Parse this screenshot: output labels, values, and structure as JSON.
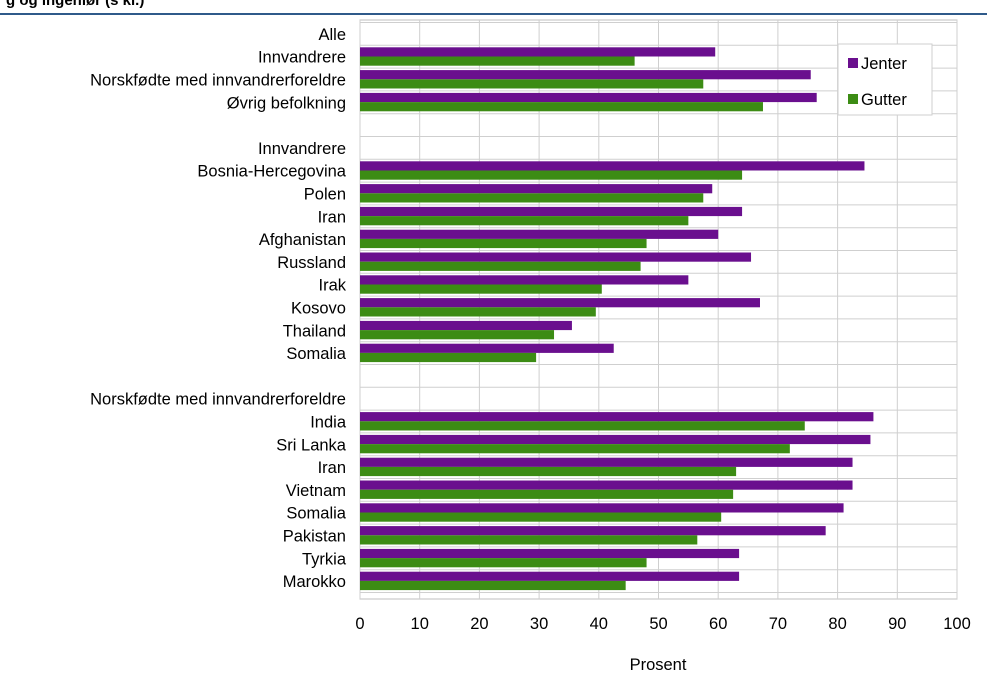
{
  "header": {
    "title_fragment": "g og ingeniør (s kl.)"
  },
  "chart_data": {
    "type": "bar",
    "orientation": "horizontal",
    "xlabel": "Prosent",
    "xlim": [
      0,
      100
    ],
    "xticks": [
      0,
      10,
      20,
      30,
      40,
      50,
      60,
      70,
      80,
      90,
      100
    ],
    "grid": true,
    "legend_position": "top-right",
    "series": [
      {
        "name": "Jenter",
        "color": "#6a0f8e"
      },
      {
        "name": "Gutter",
        "color": "#3c8c14"
      }
    ],
    "rows": [
      {
        "label": "Alle",
        "heading": true
      },
      {
        "label": "Innvandrere",
        "jenter": 59.5,
        "gutter": 46
      },
      {
        "label": "Norskfødte med innvandrerforeldre",
        "jenter": 75.5,
        "gutter": 57.5
      },
      {
        "label": "Øvrig befolkning",
        "jenter": 76.5,
        "gutter": 67.5
      },
      {
        "label": "",
        "spacer": true
      },
      {
        "label": "Innvandrere",
        "heading": true
      },
      {
        "label": "Bosnia-Hercegovina",
        "jenter": 84.5,
        "gutter": 64
      },
      {
        "label": "Polen",
        "jenter": 59,
        "gutter": 57.5
      },
      {
        "label": "Iran",
        "jenter": 64,
        "gutter": 55
      },
      {
        "label": "Afghanistan",
        "jenter": 60,
        "gutter": 48
      },
      {
        "label": "Russland",
        "jenter": 65.5,
        "gutter": 47
      },
      {
        "label": "Irak",
        "jenter": 55,
        "gutter": 40.5
      },
      {
        "label": "Kosovo",
        "jenter": 67,
        "gutter": 39.5
      },
      {
        "label": "Thailand",
        "jenter": 35.5,
        "gutter": 32.5
      },
      {
        "label": "Somalia",
        "jenter": 42.5,
        "gutter": 29.5
      },
      {
        "label": "",
        "spacer": true
      },
      {
        "label": "Norskfødte med innvandrerforeldre",
        "heading": true
      },
      {
        "label": "India",
        "jenter": 86,
        "gutter": 74.5
      },
      {
        "label": "Sri Lanka",
        "jenter": 85.5,
        "gutter": 72
      },
      {
        "label": "Iran",
        "jenter": 82.5,
        "gutter": 63
      },
      {
        "label": "Vietnam",
        "jenter": 82.5,
        "gutter": 62.5
      },
      {
        "label": "Somalia",
        "jenter": 81,
        "gutter": 60.5
      },
      {
        "label": "Pakistan",
        "jenter": 78,
        "gutter": 56.5
      },
      {
        "label": "Tyrkia",
        "jenter": 63.5,
        "gutter": 48
      },
      {
        "label": "Marokko",
        "jenter": 63.5,
        "gutter": 44.5
      }
    ]
  }
}
